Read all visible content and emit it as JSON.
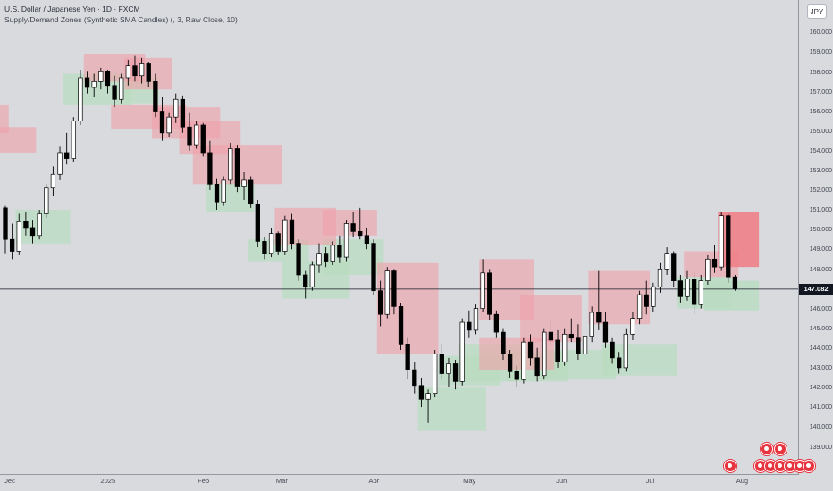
{
  "header": {
    "title": "U.S. Dollar / Japanese Yen · 1D · FXCM",
    "indicator": "Supply/Demand Zones (Synthetic SMA Candles) (, 3, Raw Close, 10)",
    "currency_button": "JPY"
  },
  "current_price": {
    "label": "147.082",
    "value": 147.082
  },
  "colors": {
    "background": "#d8dade",
    "up_candle_fill": "#ffffff",
    "down_candle_fill": "#000000",
    "candle_outline": "#000000",
    "supply_zone": "#f2a0a8",
    "demand_zone": "#b9dcc0",
    "active_supply_zone": "#f07f87",
    "price_line": "#131722"
  },
  "chart_data": {
    "type": "candlestick",
    "ylim": [
      138.3,
      161.1
    ],
    "price_axis_labels": [
      "160.000",
      "159.000",
      "158.000",
      "157.000",
      "156.000",
      "155.000",
      "154.000",
      "153.000",
      "152.000",
      "151.000",
      "150.000",
      "149.000",
      "148.000",
      "147.000",
      "146.000",
      "145.000",
      "144.000",
      "143.000",
      "142.000",
      "141.000",
      "140.000",
      "139.000"
    ],
    "date_axis_labels": [
      "Dec",
      "2025",
      "Feb",
      "Mar",
      "Apr",
      "May",
      "Jun",
      "Jul",
      "Aug"
    ],
    "candles": [
      {
        "o": 151.2,
        "h": 151.3,
        "l": 148.9,
        "c": 149.6
      },
      {
        "o": 149.6,
        "h": 150.4,
        "l": 148.6,
        "c": 149.0
      },
      {
        "o": 149.0,
        "h": 150.9,
        "l": 148.8,
        "c": 150.5
      },
      {
        "o": 150.5,
        "h": 151.0,
        "l": 149.8,
        "c": 150.2
      },
      {
        "o": 150.2,
        "h": 150.6,
        "l": 149.4,
        "c": 149.8
      },
      {
        "o": 149.8,
        "h": 151.1,
        "l": 149.6,
        "c": 150.9
      },
      {
        "o": 150.9,
        "h": 152.4,
        "l": 150.7,
        "c": 152.2
      },
      {
        "o": 152.2,
        "h": 153.3,
        "l": 151.8,
        "c": 152.9
      },
      {
        "o": 152.9,
        "h": 154.3,
        "l": 152.6,
        "c": 154.0
      },
      {
        "o": 154.0,
        "h": 155.0,
        "l": 153.4,
        "c": 153.7
      },
      {
        "o": 153.7,
        "h": 155.8,
        "l": 153.5,
        "c": 155.6
      },
      {
        "o": 155.6,
        "h": 158.2,
        "l": 155.4,
        "c": 157.8
      },
      {
        "o": 157.8,
        "h": 158.1,
        "l": 157.0,
        "c": 157.3
      },
      {
        "o": 157.3,
        "h": 158.0,
        "l": 156.8,
        "c": 157.6
      },
      {
        "o": 157.6,
        "h": 158.3,
        "l": 157.2,
        "c": 158.1
      },
      {
        "o": 158.1,
        "h": 158.2,
        "l": 157.0,
        "c": 157.4
      },
      {
        "o": 157.4,
        "h": 157.9,
        "l": 156.3,
        "c": 156.7
      },
      {
        "o": 156.7,
        "h": 158.0,
        "l": 156.5,
        "c": 157.8
      },
      {
        "o": 157.8,
        "h": 158.7,
        "l": 157.4,
        "c": 158.4
      },
      {
        "o": 158.4,
        "h": 158.9,
        "l": 157.6,
        "c": 157.9
      },
      {
        "o": 157.9,
        "h": 158.8,
        "l": 157.5,
        "c": 158.5
      },
      {
        "o": 158.5,
        "h": 158.6,
        "l": 157.3,
        "c": 157.6
      },
      {
        "o": 157.6,
        "h": 158.0,
        "l": 155.8,
        "c": 156.1
      },
      {
        "o": 156.1,
        "h": 156.8,
        "l": 154.6,
        "c": 155.0
      },
      {
        "o": 155.0,
        "h": 156.0,
        "l": 154.8,
        "c": 155.8
      },
      {
        "o": 155.8,
        "h": 157.0,
        "l": 155.5,
        "c": 156.7
      },
      {
        "o": 156.7,
        "h": 156.9,
        "l": 155.0,
        "c": 155.3
      },
      {
        "o": 155.3,
        "h": 156.0,
        "l": 154.1,
        "c": 154.4
      },
      {
        "o": 154.4,
        "h": 155.6,
        "l": 154.2,
        "c": 155.4
      },
      {
        "o": 155.4,
        "h": 155.5,
        "l": 153.8,
        "c": 154.0
      },
      {
        "o": 154.0,
        "h": 154.6,
        "l": 152.1,
        "c": 152.4
      },
      {
        "o": 152.4,
        "h": 152.7,
        "l": 151.1,
        "c": 151.5
      },
      {
        "o": 151.5,
        "h": 152.8,
        "l": 151.3,
        "c": 152.6
      },
      {
        "o": 152.6,
        "h": 154.5,
        "l": 152.4,
        "c": 154.2
      },
      {
        "o": 154.2,
        "h": 154.4,
        "l": 152.0,
        "c": 152.3
      },
      {
        "o": 152.3,
        "h": 153.0,
        "l": 151.6,
        "c": 152.6
      },
      {
        "o": 152.6,
        "h": 152.8,
        "l": 151.2,
        "c": 151.4
      },
      {
        "o": 151.4,
        "h": 151.6,
        "l": 149.2,
        "c": 149.5
      },
      {
        "o": 149.5,
        "h": 149.7,
        "l": 148.6,
        "c": 148.9
      },
      {
        "o": 148.9,
        "h": 150.2,
        "l": 148.7,
        "c": 149.9
      },
      {
        "o": 149.9,
        "h": 150.0,
        "l": 148.8,
        "c": 149.0
      },
      {
        "o": 149.0,
        "h": 150.8,
        "l": 148.8,
        "c": 150.6
      },
      {
        "o": 150.6,
        "h": 150.9,
        "l": 149.1,
        "c": 149.4
      },
      {
        "o": 149.4,
        "h": 149.6,
        "l": 147.5,
        "c": 147.8
      },
      {
        "o": 147.8,
        "h": 148.0,
        "l": 146.6,
        "c": 147.2
      },
      {
        "o": 147.2,
        "h": 148.5,
        "l": 147.0,
        "c": 148.3
      },
      {
        "o": 148.3,
        "h": 149.4,
        "l": 147.9,
        "c": 148.9
      },
      {
        "o": 148.9,
        "h": 149.2,
        "l": 148.2,
        "c": 148.5
      },
      {
        "o": 148.5,
        "h": 149.5,
        "l": 148.3,
        "c": 149.3
      },
      {
        "o": 149.3,
        "h": 149.8,
        "l": 148.4,
        "c": 148.7
      },
      {
        "o": 148.7,
        "h": 150.6,
        "l": 148.5,
        "c": 150.4
      },
      {
        "o": 150.4,
        "h": 151.0,
        "l": 149.7,
        "c": 150.0
      },
      {
        "o": 150.0,
        "h": 151.2,
        "l": 149.6,
        "c": 149.8
      },
      {
        "o": 149.8,
        "h": 150.2,
        "l": 149.1,
        "c": 149.4
      },
      {
        "o": 149.4,
        "h": 149.6,
        "l": 146.8,
        "c": 147.0
      },
      {
        "o": 147.0,
        "h": 147.5,
        "l": 145.2,
        "c": 145.8
      },
      {
        "o": 145.8,
        "h": 148.2,
        "l": 145.6,
        "c": 148.0
      },
      {
        "o": 148.0,
        "h": 148.1,
        "l": 145.8,
        "c": 146.2
      },
      {
        "o": 146.2,
        "h": 146.4,
        "l": 144.0,
        "c": 144.3
      },
      {
        "o": 144.3,
        "h": 144.6,
        "l": 142.5,
        "c": 143.0
      },
      {
        "o": 143.0,
        "h": 143.4,
        "l": 141.8,
        "c": 142.2
      },
      {
        "o": 142.2,
        "h": 142.6,
        "l": 141.1,
        "c": 141.5
      },
      {
        "o": 141.5,
        "h": 142.0,
        "l": 140.3,
        "c": 141.8
      },
      {
        "o": 141.8,
        "h": 144.0,
        "l": 141.6,
        "c": 143.8
      },
      {
        "o": 143.8,
        "h": 144.3,
        "l": 142.5,
        "c": 142.8
      },
      {
        "o": 142.8,
        "h": 143.6,
        "l": 142.1,
        "c": 143.3
      },
      {
        "o": 143.3,
        "h": 143.5,
        "l": 142.0,
        "c": 142.4
      },
      {
        "o": 142.4,
        "h": 145.6,
        "l": 142.2,
        "c": 145.4
      },
      {
        "o": 145.4,
        "h": 146.0,
        "l": 144.6,
        "c": 145.0
      },
      {
        "o": 145.0,
        "h": 146.3,
        "l": 144.8,
        "c": 146.1
      },
      {
        "o": 146.1,
        "h": 148.6,
        "l": 145.9,
        "c": 147.9
      },
      {
        "o": 147.9,
        "h": 148.1,
        "l": 145.5,
        "c": 145.8
      },
      {
        "o": 145.8,
        "h": 146.0,
        "l": 144.6,
        "c": 144.9
      },
      {
        "o": 144.9,
        "h": 145.1,
        "l": 143.5,
        "c": 143.8
      },
      {
        "o": 143.8,
        "h": 144.0,
        "l": 142.6,
        "c": 142.9
      },
      {
        "o": 142.9,
        "h": 143.2,
        "l": 142.1,
        "c": 142.5
      },
      {
        "o": 142.5,
        "h": 144.6,
        "l": 142.3,
        "c": 144.4
      },
      {
        "o": 144.4,
        "h": 144.8,
        "l": 143.2,
        "c": 143.6
      },
      {
        "o": 143.6,
        "h": 144.1,
        "l": 142.4,
        "c": 142.7
      },
      {
        "o": 142.7,
        "h": 145.1,
        "l": 142.5,
        "c": 144.9
      },
      {
        "o": 144.9,
        "h": 145.5,
        "l": 144.2,
        "c": 144.5
      },
      {
        "o": 144.5,
        "h": 145.0,
        "l": 143.1,
        "c": 143.4
      },
      {
        "o": 143.4,
        "h": 145.1,
        "l": 143.2,
        "c": 144.8
      },
      {
        "o": 144.8,
        "h": 145.6,
        "l": 144.4,
        "c": 144.6
      },
      {
        "o": 144.6,
        "h": 145.3,
        "l": 143.5,
        "c": 143.8
      },
      {
        "o": 143.8,
        "h": 145.0,
        "l": 143.6,
        "c": 144.7
      },
      {
        "o": 144.7,
        "h": 146.2,
        "l": 144.4,
        "c": 145.9
      },
      {
        "o": 145.9,
        "h": 148.0,
        "l": 145.0,
        "c": 145.4
      },
      {
        "o": 145.4,
        "h": 145.9,
        "l": 144.1,
        "c": 144.4
      },
      {
        "o": 144.4,
        "h": 144.6,
        "l": 143.3,
        "c": 143.6
      },
      {
        "o": 143.6,
        "h": 143.9,
        "l": 142.8,
        "c": 143.1
      },
      {
        "o": 143.1,
        "h": 145.1,
        "l": 142.9,
        "c": 144.8
      },
      {
        "o": 144.8,
        "h": 145.9,
        "l": 144.5,
        "c": 145.6
      },
      {
        "o": 145.6,
        "h": 147.0,
        "l": 145.3,
        "c": 146.8
      },
      {
        "o": 146.8,
        "h": 147.5,
        "l": 145.8,
        "c": 146.2
      },
      {
        "o": 146.2,
        "h": 147.4,
        "l": 145.9,
        "c": 147.2
      },
      {
        "o": 147.2,
        "h": 148.4,
        "l": 146.9,
        "c": 148.1
      },
      {
        "o": 148.1,
        "h": 149.2,
        "l": 147.8,
        "c": 148.9
      },
      {
        "o": 148.9,
        "h": 149.0,
        "l": 147.2,
        "c": 147.5
      },
      {
        "o": 147.5,
        "h": 147.8,
        "l": 146.4,
        "c": 146.7
      },
      {
        "o": 146.7,
        "h": 148.0,
        "l": 146.5,
        "c": 147.6
      },
      {
        "o": 147.6,
        "h": 147.9,
        "l": 145.8,
        "c": 146.3
      },
      {
        "o": 146.3,
        "h": 147.8,
        "l": 146.1,
        "c": 147.5
      },
      {
        "o": 147.5,
        "h": 148.8,
        "l": 147.3,
        "c": 148.6
      },
      {
        "o": 148.6,
        "h": 149.3,
        "l": 147.9,
        "c": 148.2
      },
      {
        "o": 148.2,
        "h": 151.0,
        "l": 148.0,
        "c": 150.8
      },
      {
        "o": 150.8,
        "h": 150.9,
        "l": 147.4,
        "c": 147.7
      },
      {
        "o": 147.7,
        "h": 147.8,
        "l": 147.0,
        "c": 147.1
      }
    ],
    "supply_zones": [
      {
        "from": -1,
        "to": 4,
        "top": 155.3,
        "bottom": 154.0
      },
      {
        "from": -1,
        "to": 0,
        "top": 156.4,
        "bottom": 155.0
      },
      {
        "from": 12,
        "to": 20,
        "top": 159.0,
        "bottom": 157.6
      },
      {
        "from": 18,
        "to": 24,
        "top": 158.8,
        "bottom": 157.2
      },
      {
        "from": 16,
        "to": 26,
        "top": 156.4,
        "bottom": 155.2
      },
      {
        "from": 22,
        "to": 31,
        "top": 156.3,
        "bottom": 154.7
      },
      {
        "from": 26,
        "to": 34,
        "top": 155.6,
        "bottom": 153.9
      },
      {
        "from": 28,
        "to": 40,
        "top": 154.4,
        "bottom": 152.4
      },
      {
        "from": 40,
        "to": 48,
        "top": 151.2,
        "bottom": 149.3
      },
      {
        "from": 47,
        "to": 54,
        "top": 151.1,
        "bottom": 149.8
      },
      {
        "from": 55,
        "to": 63,
        "top": 148.4,
        "bottom": 143.8
      },
      {
        "from": 70,
        "to": 77,
        "top": 148.6,
        "bottom": 145.5
      },
      {
        "from": 76,
        "to": 84,
        "top": 146.8,
        "bottom": 144.4
      },
      {
        "from": 70,
        "to": 80,
        "top": 144.6,
        "bottom": 143.0
      },
      {
        "from": 86,
        "to": 94,
        "top": 148.0,
        "bottom": 145.3
      },
      {
        "from": 100,
        "to": 107,
        "top": 149.0,
        "bottom": 147.7
      }
    ],
    "demand_zones": [
      {
        "from": 2,
        "to": 9,
        "top": 151.1,
        "bottom": 149.4
      },
      {
        "from": 9,
        "to": 18,
        "top": 158.0,
        "bottom": 156.4
      },
      {
        "from": 18,
        "to": 22,
        "top": 157.8,
        "bottom": 156.5
      },
      {
        "from": 30,
        "to": 36,
        "top": 152.5,
        "bottom": 151.0
      },
      {
        "from": 36,
        "to": 44,
        "top": 149.6,
        "bottom": 148.5
      },
      {
        "from": 41,
        "to": 50,
        "top": 148.5,
        "bottom": 146.6
      },
      {
        "from": 47,
        "to": 55,
        "top": 149.6,
        "bottom": 147.8
      },
      {
        "from": 61,
        "to": 70,
        "top": 142.1,
        "bottom": 139.9
      },
      {
        "from": 64,
        "to": 72,
        "top": 143.7,
        "bottom": 142.2
      },
      {
        "from": 67,
        "to": 76,
        "top": 144.3,
        "bottom": 142.4
      },
      {
        "from": 74,
        "to": 82,
        "top": 143.9,
        "bottom": 142.4
      },
      {
        "from": 79,
        "to": 89,
        "top": 144.0,
        "bottom": 142.5
      },
      {
        "from": 88,
        "to": 98,
        "top": 144.3,
        "bottom": 142.7
      },
      {
        "from": 99,
        "to": 106,
        "top": 147.7,
        "bottom": 146.1
      }
    ],
    "active_supply_zone": {
      "from": 105,
      "to": 110,
      "top": 151.0,
      "bottom": 148.2
    },
    "active_demand_zone": {
      "from": 103,
      "to": 110,
      "top": 147.5,
      "bottom": 146.0
    }
  }
}
